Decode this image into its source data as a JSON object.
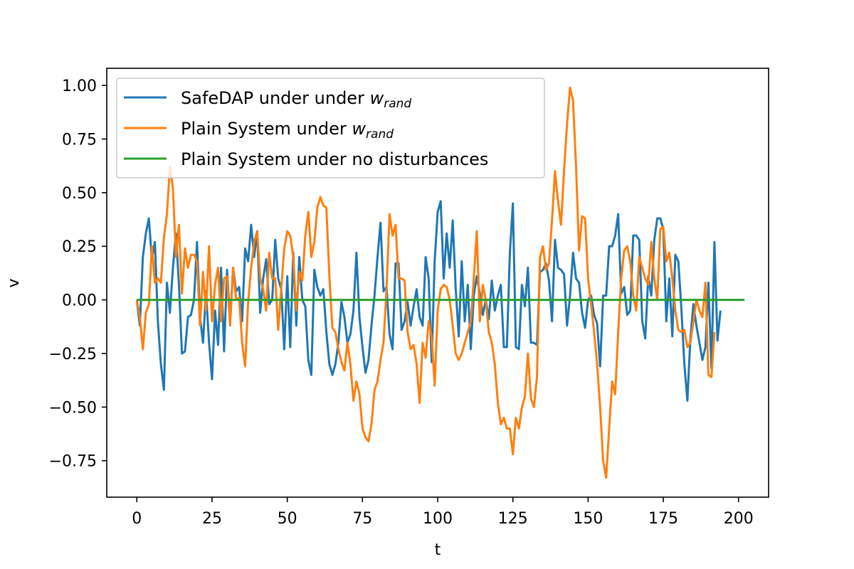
{
  "chart_data": {
    "type": "line",
    "xlabel": "t",
    "ylabel": "v",
    "xlim": [
      -10,
      210
    ],
    "ylim": [
      -0.92,
      1.08
    ],
    "xticks": [
      0,
      25,
      50,
      75,
      100,
      125,
      150,
      175,
      200
    ],
    "xtick_labels": [
      "0",
      "25",
      "50",
      "75",
      "100",
      "125",
      "150",
      "175",
      "200"
    ],
    "yticks": [
      -0.75,
      -0.5,
      -0.25,
      0.0,
      0.25,
      0.5,
      0.75,
      1.0
    ],
    "ytick_labels": [
      "−0.75",
      "−0.50",
      "−0.25",
      "0.00",
      "0.25",
      "0.50",
      "0.75",
      "1.00"
    ],
    "grid": false,
    "legend_position": "upper-left",
    "x_start": 0,
    "x_step": 1,
    "series": [
      {
        "name": "SafeDAP under under w_rand",
        "legend_main": "SafeDAP under under ",
        "legend_symbol": "w",
        "legend_subscript": "rand",
        "color": "#1f77b4",
        "values": [
          0.0,
          -0.12,
          0.2,
          0.31,
          0.38,
          0.19,
          0.27,
          -0.1,
          -0.3,
          -0.42,
          0.08,
          -0.06,
          0.15,
          0.31,
          0.07,
          -0.25,
          -0.24,
          -0.08,
          -0.07,
          0.0,
          0.27,
          -0.08,
          -0.2,
          0.04,
          -0.2,
          -0.37,
          -0.05,
          -0.21,
          0.15,
          -0.24,
          0.14,
          -0.1,
          0.15,
          0.04,
          0.06,
          -0.1,
          0.24,
          0.18,
          0.35,
          0.2,
          0.32,
          -0.06,
          0.1,
          0.19,
          -0.02,
          0.0,
          0.28,
          0.1,
          0.05,
          -0.23,
          0.11,
          -0.22,
          0.22,
          -0.12,
          0.2,
          0.0,
          -0.03,
          -0.28,
          -0.35,
          0.14,
          0.06,
          0.02,
          0.05,
          -0.15,
          -0.3,
          -0.35,
          -0.3,
          -0.2,
          -0.01,
          -0.08,
          -0.2,
          -0.16,
          -0.05,
          0.22,
          -0.08,
          -0.22,
          -0.34,
          -0.28,
          -0.12,
          0.02,
          0.2,
          0.36,
          0.04,
          0.06,
          -0.16,
          -0.23,
          0.17,
          0.17,
          -0.14,
          -0.1,
          -0.01,
          -0.12,
          -0.03,
          0.05,
          -0.08,
          -0.12,
          0.2,
          0.1,
          -0.29,
          0.18,
          0.41,
          0.46,
          0.1,
          0.31,
          0.15,
          0.37,
          0.05,
          -0.17,
          0.18,
          -0.1,
          0.07,
          -0.23,
          0.02,
          0.11,
          0.03,
          -0.07,
          0.0,
          -0.09,
          0.09,
          -0.05,
          0.02,
          0.07,
          -0.22,
          -0.22,
          0.22,
          0.45,
          -0.22,
          -0.23,
          0.07,
          -0.03,
          0.15,
          -0.2,
          -0.2,
          -0.21,
          0.13,
          0.14,
          0.17,
          0.09,
          -0.1,
          0.28,
          0.15,
          0.14,
          0.12,
          -0.12,
          0.02,
          0.22,
          0.1,
          0.08,
          -0.06,
          -0.13,
          0.0,
          0.02,
          -0.07,
          -0.11,
          -0.31,
          0.02,
          0.02,
          0.25,
          0.25,
          0.3,
          0.4,
          0.03,
          0.06,
          -0.07,
          -0.05,
          0.3,
          0.3,
          0.28,
          -0.1,
          -0.18,
          0.11,
          0.02,
          0.28,
          0.38,
          0.38,
          0.33,
          -0.1,
          0.1,
          -0.17,
          0.21,
          0.18,
          -0.04,
          -0.3,
          -0.47,
          -0.18,
          -0.02,
          -0.12,
          -0.2,
          -0.28,
          -0.22,
          0.08,
          -0.32,
          0.27,
          -0.19,
          -0.05
        ]
      },
      {
        "name": "Plain System under w_rand",
        "legend_main": "Plain System under ",
        "legend_symbol": "w",
        "legend_subscript": "rand",
        "color": "#ff7f0e",
        "values": [
          0.0,
          -0.08,
          -0.23,
          -0.06,
          -0.02,
          0.25,
          0.08,
          0.1,
          0.08,
          0.29,
          0.4,
          0.62,
          0.52,
          0.2,
          0.35,
          0.03,
          0.24,
          0.15,
          0.21,
          0.21,
          0.18,
          -0.12,
          0.13,
          -0.05,
          0.25,
          -0.1,
          0.07,
          0.15,
          -0.1,
          0.1,
          0.11,
          -0.12,
          0.15,
          0.0,
          0.01,
          -0.2,
          -0.31,
          -0.01,
          0.15,
          0.27,
          0.32,
          0.1,
          0.05,
          -0.05,
          0.22,
          0.1,
          0.1,
          -0.14,
          0.05,
          0.24,
          0.32,
          0.3,
          0.2,
          -0.05,
          0.13,
          0.09,
          0.3,
          0.41,
          0.2,
          0.27,
          0.43,
          0.48,
          0.44,
          0.43,
          0.11,
          -0.13,
          -0.15,
          -0.23,
          -0.29,
          -0.33,
          -0.2,
          -0.3,
          -0.47,
          -0.38,
          -0.44,
          -0.6,
          -0.64,
          -0.66,
          -0.58,
          -0.42,
          -0.38,
          -0.28,
          -0.2,
          0.05,
          0.4,
          0.3,
          0.35,
          0.1,
          0.1,
          0.09,
          -0.15,
          -0.23,
          -0.21,
          -0.3,
          -0.48,
          -0.2,
          -0.27,
          -0.1,
          -0.17,
          -0.4,
          -0.05,
          0.05,
          0.07,
          0.06,
          0.0,
          -0.12,
          -0.25,
          -0.28,
          -0.25,
          -0.2,
          -0.15,
          -0.1,
          0.1,
          0.32,
          -0.1,
          0.07,
          0.0,
          -0.15,
          -0.2,
          -0.3,
          -0.48,
          -0.58,
          -0.55,
          -0.6,
          -0.6,
          -0.72,
          -0.55,
          -0.6,
          -0.5,
          -0.45,
          -0.25,
          -0.46,
          -0.5,
          -0.36,
          0.2,
          0.25,
          0.14,
          0.17,
          0.37,
          0.6,
          0.46,
          0.35,
          0.6,
          0.82,
          0.99,
          0.93,
          0.62,
          0.23,
          0.39,
          0.38,
          0.1,
          -0.02,
          -0.15,
          -0.3,
          -0.5,
          -0.75,
          -0.83,
          -0.6,
          -0.38,
          -0.44,
          -0.15,
          0.1,
          0.23,
          0.25,
          0.18,
          0.02,
          -0.05,
          0.2,
          0.15,
          0.1,
          0.07,
          0.27,
          0.1,
          0.0,
          0.33,
          0.34,
          0.18,
          0.22,
          0.1,
          -0.05,
          -0.14,
          -0.15,
          -0.14,
          -0.22,
          -0.2,
          -0.1,
          0.0,
          -0.05,
          -0.08,
          0.08,
          -0.35,
          -0.36,
          -0.15
        ]
      },
      {
        "name": "Plain System under no disturbances",
        "legend_main": "Plain System under no disturbances",
        "legend_symbol": "",
        "legend_subscript": "",
        "color": "#2ca02c",
        "values": [
          0.0,
          0.0,
          0.0,
          0.0,
          0.0,
          0.0,
          0.0,
          0.0,
          0.0,
          0.0,
          0.0,
          0.0,
          0.0,
          0.0,
          0.0,
          0.0,
          0.0,
          0.0,
          0.0,
          0.0,
          0.0,
          0.0,
          0.0,
          0.0,
          0.0,
          0.0,
          0.0,
          0.0,
          0.0,
          0.0,
          0.0,
          0.0,
          0.0,
          0.0,
          0.0,
          0.0,
          0.0,
          0.0,
          0.0,
          0.0,
          0.0,
          0.0,
          0.0,
          0.0,
          0.0,
          0.0,
          0.0,
          0.0,
          0.0,
          0.0,
          0.0,
          0.0,
          0.0,
          0.0,
          0.0,
          0.0,
          0.0,
          0.0,
          0.0,
          0.0,
          0.0,
          0.0,
          0.0,
          0.0,
          0.0,
          0.0,
          0.0,
          0.0,
          0.0,
          0.0,
          0.0,
          0.0,
          0.0,
          0.0,
          0.0,
          0.0,
          0.0,
          0.0,
          0.0,
          0.0,
          0.0,
          0.0,
          0.0,
          0.0,
          0.0,
          0.0,
          0.0,
          0.0,
          0.0,
          0.0,
          0.0,
          0.0,
          0.0,
          0.0,
          0.0,
          0.0,
          0.0,
          0.0,
          0.0,
          0.0,
          0.0,
          0.0,
          0.0,
          0.0,
          0.0,
          0.0,
          0.0,
          0.0,
          0.0,
          0.0,
          0.0,
          0.0,
          0.0,
          0.0,
          0.0,
          0.0,
          0.0,
          0.0,
          0.0,
          0.0,
          0.0,
          0.0,
          0.0,
          0.0,
          0.0,
          0.0,
          0.0,
          0.0,
          0.0,
          0.0,
          0.0,
          0.0,
          0.0,
          0.0,
          0.0,
          0.0,
          0.0,
          0.0,
          0.0,
          0.0,
          0.0,
          0.0,
          0.0,
          0.0,
          0.0,
          0.0,
          0.0,
          0.0,
          0.0,
          0.0,
          0.0,
          0.0,
          0.0,
          0.0,
          0.0,
          0.0,
          0.0,
          0.0,
          0.0,
          0.0,
          0.0,
          0.0,
          0.0,
          0.0,
          0.0,
          0.0,
          0.0,
          0.0,
          0.0,
          0.0,
          0.0,
          0.0,
          0.0,
          0.0,
          0.0,
          0.0,
          0.0,
          0.0,
          0.0,
          0.0,
          0.0,
          0.0,
          0.0,
          0.0,
          0.0,
          0.0,
          0.0,
          0.0,
          0.0,
          0.0,
          0.0,
          0.0,
          0.0,
          0.0,
          0.0,
          0.0,
          0.0,
          0.0,
          0.0,
          0.0,
          0.0,
          0.0,
          0.0
        ]
      }
    ]
  }
}
